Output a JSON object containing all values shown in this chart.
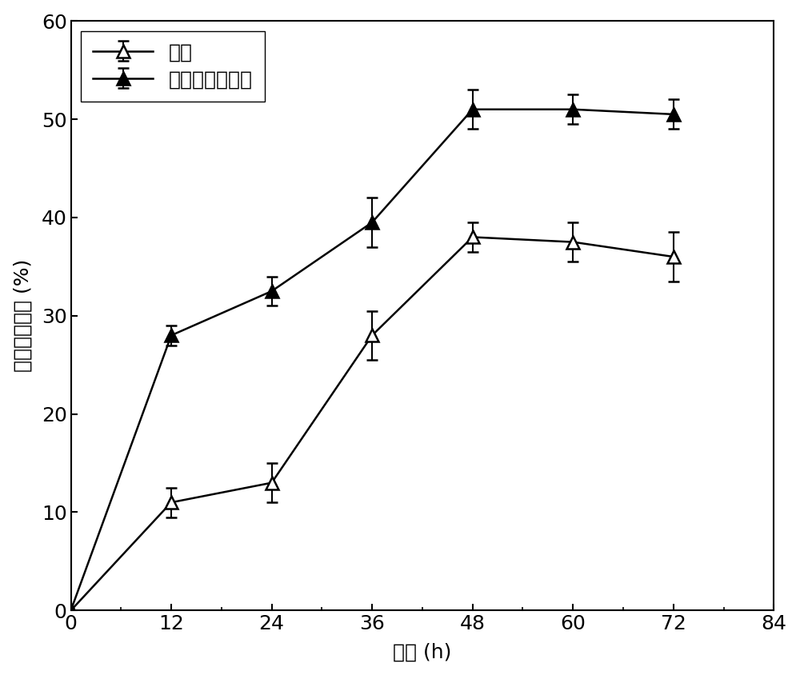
{
  "x": [
    0,
    12,
    24,
    36,
    48,
    60,
    72
  ],
  "control_y": [
    0,
    11.0,
    13.0,
    28.0,
    38.0,
    37.5,
    36.0
  ],
  "control_yerr": [
    0,
    1.5,
    2.0,
    2.5,
    1.5,
    2.0,
    2.5
  ],
  "treatment_y": [
    0,
    28.0,
    32.5,
    39.5,
    51.0,
    51.0,
    50.5
  ],
  "treatment_yerr": [
    0,
    1.0,
    1.5,
    2.5,
    2.0,
    1.5,
    1.5
  ],
  "xlabel": "时间 (h)",
  "ylabel": "有机物降解率 (%)",
  "legend_control": "对照",
  "legend_treatment": "复合微生物菌剂",
  "xlim": [
    0,
    84
  ],
  "ylim": [
    0,
    60
  ],
  "xticks": [
    0,
    12,
    24,
    36,
    48,
    60,
    72,
    84
  ],
  "yticks": [
    0,
    10,
    20,
    30,
    40,
    50,
    60
  ],
  "line_color": "#000000",
  "background_color": "#ffffff",
  "fontsize_ticks": 18,
  "fontsize_labels": 18,
  "fontsize_legend": 18
}
